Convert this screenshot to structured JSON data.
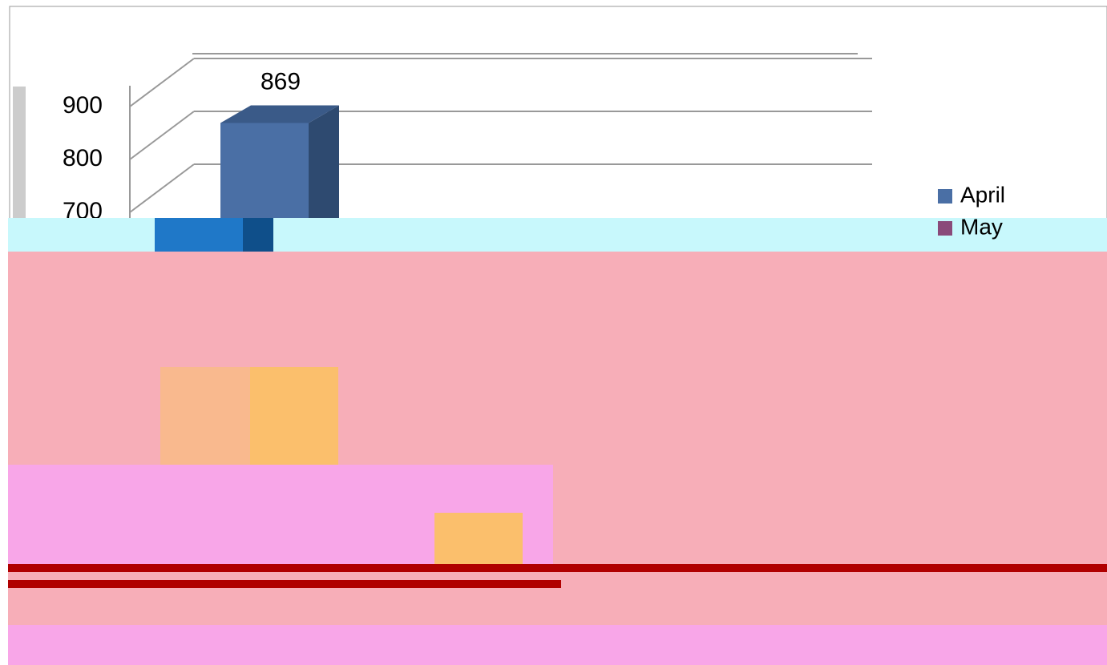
{
  "chart_data": {
    "type": "bar3d",
    "categories": [
      null
    ],
    "series": [
      {
        "name": "April",
        "color": "#4a6fa5",
        "values": [
          869
        ]
      },
      {
        "name": "May",
        "color": "#8a4a7a",
        "values": [
          null
        ]
      }
    ],
    "ylim": [
      600,
      1000
    ],
    "yticks": [
      700,
      800,
      900
    ],
    "grid": true,
    "legend": "right"
  }
}
